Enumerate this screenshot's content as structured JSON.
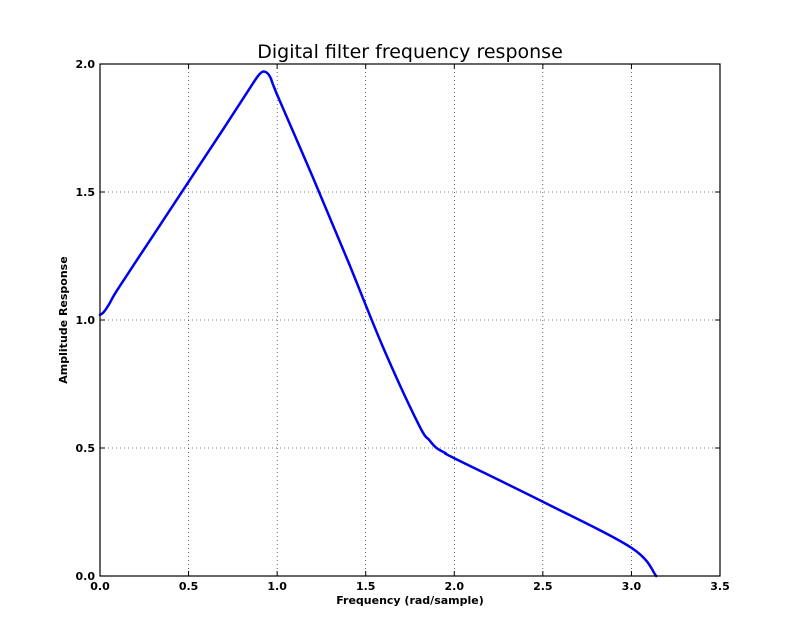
{
  "chart_data": {
    "type": "line",
    "title": "Digital filter frequency response",
    "xlabel": "Frequency (rad/sample)",
    "ylabel": "Amplitude Response",
    "xlim": [
      0.0,
      3.5
    ],
    "ylim": [
      0.0,
      2.0
    ],
    "xticks": [
      "0.0",
      "0.5",
      "1.0",
      "1.5",
      "2.0",
      "2.5",
      "3.0",
      "3.5"
    ],
    "yticks": [
      "0.0",
      "0.5",
      "1.0",
      "1.5",
      "2.0"
    ],
    "grid": true,
    "series": [
      {
        "color": "#0000ee",
        "x": [
          0.0,
          0.02,
          0.05,
          0.1,
          0.3,
          0.5,
          0.7,
          0.85,
          0.9,
          0.93,
          0.96,
          1.0,
          1.2,
          1.4,
          1.6,
          1.8,
          1.86,
          1.9,
          1.95,
          2.0,
          2.5,
          3.0,
          3.14
        ],
        "y": [
          1.02,
          1.03,
          1.06,
          1.12,
          1.33,
          1.54,
          1.75,
          1.91,
          1.96,
          1.97,
          1.95,
          1.88,
          1.56,
          1.23,
          0.89,
          0.59,
          0.53,
          0.5,
          0.48,
          0.46,
          0.29,
          0.11,
          0.0
        ]
      }
    ]
  }
}
